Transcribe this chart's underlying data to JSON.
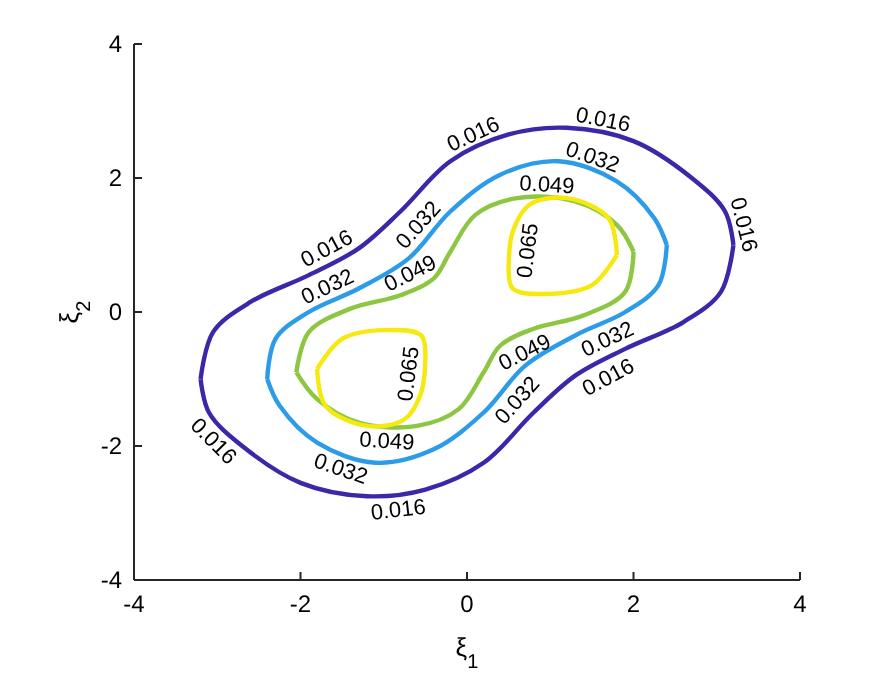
{
  "chart_data": {
    "type": "line",
    "xlabel": "ξ$_{1}$",
    "ylabel": "ξ$_{2}$",
    "xlim": [
      -4,
      4
    ],
    "ylim": [
      -4,
      4
    ],
    "xticks": [
      -4,
      -2,
      0,
      2,
      4
    ],
    "yticks": [
      -4,
      -2,
      0,
      2,
      4
    ],
    "grid": false,
    "legend": false,
    "marker": "none",
    "line_style": "solid",
    "series": [
      {
        "name": "0.016",
        "color": "#3e26a8",
        "x": [
          -3.2,
          -3.05,
          -2.6,
          -1.9,
          -1.3,
          -0.8,
          -0.2,
          0.5,
          1.2,
          2.0,
          2.7,
          3.1,
          3.2,
          null,
          -3.2,
          -3.1,
          -2.7,
          -2.0,
          -1.2,
          -0.5,
          0.2,
          0.8,
          1.3,
          1.9,
          2.6,
          3.05,
          3.2
        ],
        "values": [
          -1.0,
          -0.3,
          0.15,
          0.55,
          0.95,
          1.5,
          2.25,
          2.65,
          2.75,
          2.55,
          2.0,
          1.5,
          1.0,
          null,
          -1.0,
          -1.5,
          -2.0,
          -2.55,
          -2.75,
          -2.65,
          -2.25,
          -1.5,
          -0.95,
          -0.55,
          -0.15,
          0.3,
          1.0
        ]
      },
      {
        "name": "0.032",
        "color": "#2c9ce8",
        "x": [
          -2.4,
          -2.3,
          -1.9,
          -1.3,
          -0.7,
          -0.2,
          0.4,
          1.1,
          1.8,
          2.25,
          2.4,
          null,
          -2.4,
          -2.25,
          -1.8,
          -1.1,
          -0.4,
          0.2,
          0.7,
          1.3,
          1.9,
          2.3,
          2.4
        ],
        "values": [
          -1.0,
          -0.4,
          0.0,
          0.35,
          0.8,
          1.5,
          2.05,
          2.25,
          1.95,
          1.4,
          1.0,
          null,
          -1.0,
          -1.4,
          -1.95,
          -2.25,
          -2.05,
          -1.5,
          -0.8,
          -0.35,
          0.0,
          0.4,
          1.0
        ]
      },
      {
        "name": "0.049",
        "color": "#8dc640",
        "x": [
          -2.05,
          -1.9,
          -1.4,
          -0.8,
          -0.4,
          -0.2,
          0.1,
          0.6,
          1.3,
          1.8,
          2.0,
          null,
          -2.05,
          -1.8,
          -1.3,
          -0.6,
          -0.1,
          0.2,
          0.4,
          0.8,
          1.4,
          1.9,
          2.0
        ],
        "values": [
          -0.9,
          -0.3,
          0.05,
          0.25,
          0.5,
          0.9,
          1.45,
          1.7,
          1.65,
          1.3,
          0.9,
          null,
          -0.9,
          -1.3,
          -1.65,
          -1.7,
          -1.45,
          -0.9,
          -0.5,
          -0.25,
          -0.05,
          0.3,
          0.9
        ]
      },
      {
        "name": "0.065",
        "color": "#f5e90f",
        "x": [
          -1.8,
          -1.5,
          -1.0,
          -0.55,
          -0.5,
          null,
          -1.8,
          -1.7,
          -1.2,
          -0.75,
          -0.55,
          -0.5,
          null,
          0.5,
          0.55,
          0.75,
          1.2,
          1.7,
          1.8,
          null,
          0.5,
          0.55,
          1.0,
          1.5,
          1.8
        ],
        "values": [
          -0.85,
          -0.4,
          -0.27,
          -0.35,
          -0.7,
          null,
          -0.85,
          -1.4,
          -1.7,
          -1.6,
          -1.2,
          -0.7,
          null,
          0.7,
          1.2,
          1.6,
          1.7,
          1.4,
          0.85,
          null,
          0.7,
          0.35,
          0.27,
          0.4,
          0.85
        ]
      }
    ]
  }
}
